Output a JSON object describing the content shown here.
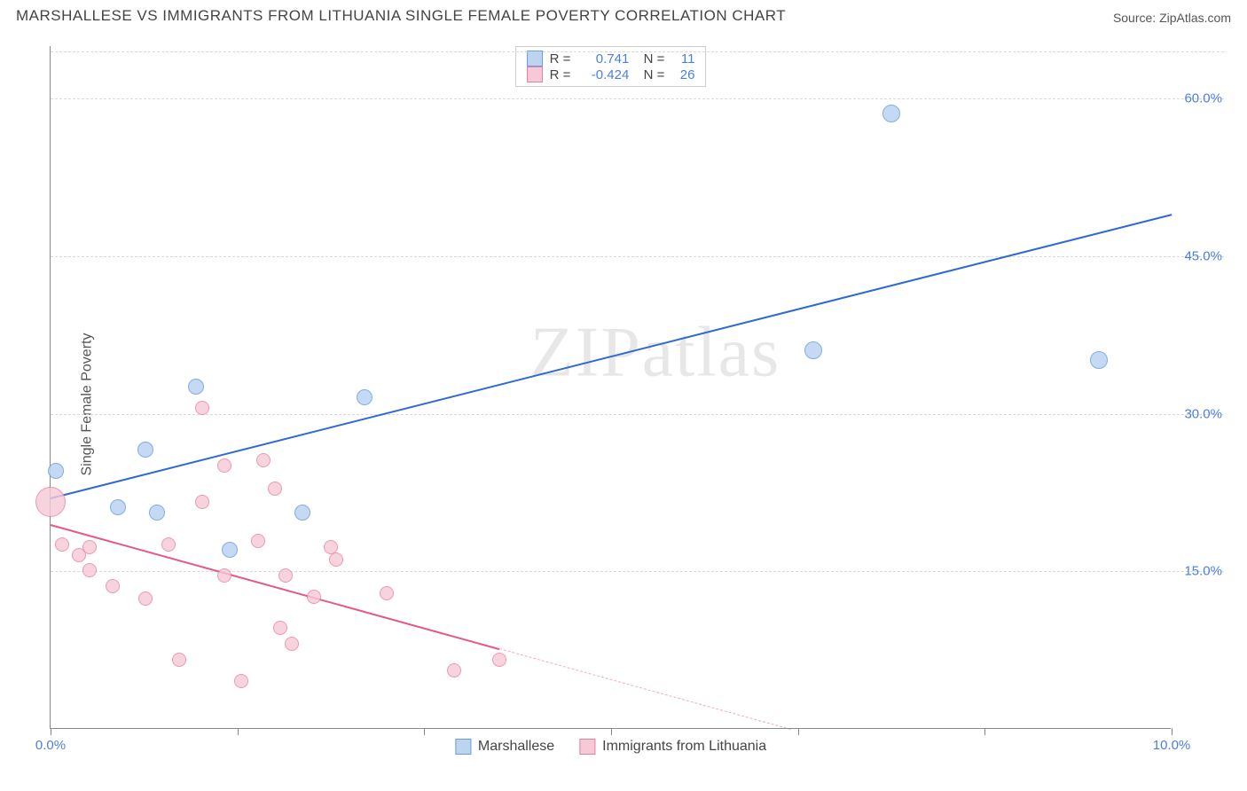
{
  "header": {
    "title": "MARSHALLESE VS IMMIGRANTS FROM LITHUANIA SINGLE FEMALE POVERTY CORRELATION CHART",
    "source_prefix": "Source: ",
    "source_name": "ZipAtlas.com"
  },
  "chart": {
    "type": "scatter",
    "y_axis_label": "Single Female Poverty",
    "watermark": "ZIPatlas",
    "background_color": "#ffffff",
    "grid_color": "#d9d9d9",
    "axis_color": "#888888",
    "xlim": [
      0,
      10
    ],
    "ylim": [
      0,
      65
    ],
    "x_ticks": [
      0,
      1.67,
      3.33,
      5.0,
      6.67,
      8.33,
      10.0
    ],
    "x_tick_labels": {
      "0": "0.0%",
      "10": "10.0%"
    },
    "y_ticks": [
      15,
      30,
      45,
      60
    ],
    "y_tick_labels": {
      "15": "15.0%",
      "30": "30.0%",
      "45": "45.0%",
      "60": "60.0%"
    },
    "stats_legend": {
      "rows": [
        {
          "swatch_fill": "#bcd4f0",
          "swatch_border": "#6a9de8",
          "r_label": "R =",
          "r_value": "0.741",
          "n_label": "N =",
          "n_value": "11"
        },
        {
          "swatch_fill": "#f6c9d6",
          "swatch_border": "#e87fa2",
          "r_label": "R =",
          "r_value": "-0.424",
          "n_label": "N =",
          "n_value": "26"
        }
      ]
    },
    "series_legend": [
      {
        "swatch_fill": "#bcd4f0",
        "swatch_border": "#6a9de8",
        "label": "Marshallese"
      },
      {
        "swatch_fill": "#f6c9d6",
        "swatch_border": "#e87fa2",
        "label": "Immigrants from Lithuania"
      }
    ],
    "series": [
      {
        "name": "Marshallese",
        "marker_fill": "#bcd4f0",
        "marker_border": "#6a9de8",
        "marker_opacity": 0.85,
        "marker_radius": 9,
        "line_color": "#2e6ad1",
        "line_width": 2,
        "trend": {
          "x1": 0,
          "y1": 22.0,
          "x2": 10,
          "y2": 49.0,
          "solid_until_x": 10
        },
        "points": [
          {
            "x": 0.05,
            "y": 24.5,
            "r": 9
          },
          {
            "x": 0.6,
            "y": 21.0,
            "r": 9
          },
          {
            "x": 0.95,
            "y": 20.5,
            "r": 9
          },
          {
            "x": 0.85,
            "y": 26.5,
            "r": 9
          },
          {
            "x": 1.3,
            "y": 32.5,
            "r": 9
          },
          {
            "x": 1.6,
            "y": 17.0,
            "r": 9
          },
          {
            "x": 2.25,
            "y": 20.5,
            "r": 9
          },
          {
            "x": 2.8,
            "y": 31.5,
            "r": 9
          },
          {
            "x": 6.8,
            "y": 36.0,
            "r": 10
          },
          {
            "x": 7.5,
            "y": 58.5,
            "r": 10
          },
          {
            "x": 9.35,
            "y": 35.0,
            "r": 10
          }
        ]
      },
      {
        "name": "Immigrants from Lithuania",
        "marker_fill": "#f6c9d6",
        "marker_border": "#e87fa2",
        "marker_opacity": 0.8,
        "marker_radius": 9,
        "line_color": "#e35b82",
        "line_width": 2,
        "trend": {
          "x1": 0,
          "y1": 19.5,
          "x2": 6.6,
          "y2": 0,
          "solid_until_x": 4.0
        },
        "points": [
          {
            "x": 0.0,
            "y": 21.5,
            "r": 17
          },
          {
            "x": 0.1,
            "y": 17.5,
            "r": 8
          },
          {
            "x": 0.25,
            "y": 16.5,
            "r": 8
          },
          {
            "x": 0.35,
            "y": 17.2,
            "r": 8
          },
          {
            "x": 0.35,
            "y": 15.0,
            "r": 8
          },
          {
            "x": 0.55,
            "y": 13.5,
            "r": 8
          },
          {
            "x": 0.85,
            "y": 12.3,
            "r": 8
          },
          {
            "x": 1.05,
            "y": 17.5,
            "r": 8
          },
          {
            "x": 1.15,
            "y": 6.5,
            "r": 8
          },
          {
            "x": 1.35,
            "y": 21.5,
            "r": 8
          },
          {
            "x": 1.35,
            "y": 30.5,
            "r": 8
          },
          {
            "x": 1.55,
            "y": 25.0,
            "r": 8
          },
          {
            "x": 1.55,
            "y": 14.5,
            "r": 8
          },
          {
            "x": 1.7,
            "y": 4.5,
            "r": 8
          },
          {
            "x": 1.85,
            "y": 17.8,
            "r": 8
          },
          {
            "x": 1.9,
            "y": 25.5,
            "r": 8
          },
          {
            "x": 2.0,
            "y": 22.8,
            "r": 8
          },
          {
            "x": 2.05,
            "y": 9.5,
            "r": 8
          },
          {
            "x": 2.1,
            "y": 14.5,
            "r": 8
          },
          {
            "x": 2.15,
            "y": 8.0,
            "r": 8
          },
          {
            "x": 2.35,
            "y": 12.5,
            "r": 8
          },
          {
            "x": 2.5,
            "y": 17.2,
            "r": 8
          },
          {
            "x": 2.55,
            "y": 16.0,
            "r": 8
          },
          {
            "x": 3.0,
            "y": 12.8,
            "r": 8
          },
          {
            "x": 3.6,
            "y": 5.5,
            "r": 8
          },
          {
            "x": 4.0,
            "y": 6.5,
            "r": 8
          }
        ]
      }
    ]
  }
}
